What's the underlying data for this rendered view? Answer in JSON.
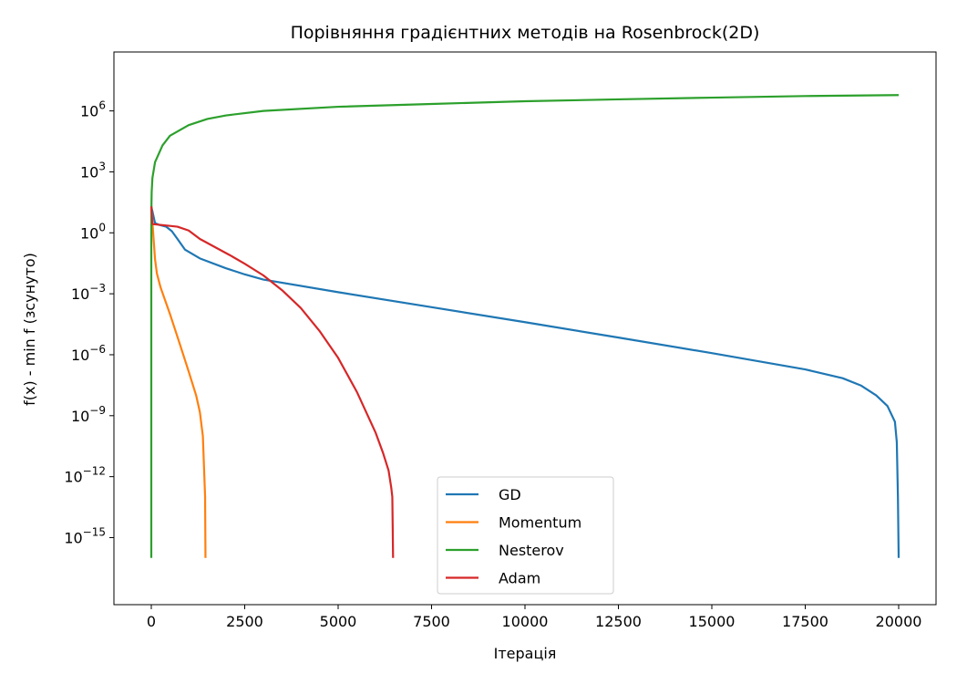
{
  "chart_data": {
    "type": "line",
    "title": "Порівняння градієнтних методів на Rosenbrock(2D)",
    "xlabel": "Ітерація",
    "ylabel": "f(x) - min f (зсунуто)",
    "xscale": "linear",
    "yscale": "log",
    "xlim": [
      -1000,
      21000
    ],
    "ylim_exponent": [
      -18.3,
      8.9
    ],
    "x_ticks": [
      0,
      2500,
      5000,
      7500,
      10000,
      12500,
      15000,
      17500,
      20000
    ],
    "y_ticks": [
      {
        "base": "10",
        "exp": "6",
        "value": 1000000.0
      },
      {
        "base": "10",
        "exp": "3",
        "value": 1000.0
      },
      {
        "base": "10",
        "exp": "0",
        "value": 1
      },
      {
        "base": "10",
        "exp": "−3",
        "value": 0.001
      },
      {
        "base": "10",
        "exp": "−6",
        "value": 1e-06
      },
      {
        "base": "10",
        "exp": "−9",
        "value": 1e-09
      },
      {
        "base": "10",
        "exp": "−12",
        "value": 1e-12
      },
      {
        "base": "10",
        "exp": "−15",
        "value": 1e-15
      }
    ],
    "grid": false,
    "legend_position": "lower-center",
    "series": [
      {
        "name": "GD",
        "color": "#1f77b4",
        "points": [
          [
            0,
            20
          ],
          [
            100,
            3
          ],
          [
            200,
            2.5
          ],
          [
            400,
            2
          ],
          [
            550,
            1.2
          ],
          [
            700,
            0.5
          ],
          [
            900,
            0.15
          ],
          [
            1300,
            0.055
          ],
          [
            2000,
            0.018
          ],
          [
            2500,
            0.009
          ],
          [
            3000,
            0.005
          ],
          [
            5000,
            0.0012
          ],
          [
            7500,
            0.00022
          ],
          [
            10000,
            4e-05
          ],
          [
            12500,
            7e-06
          ],
          [
            15000,
            1.2e-06
          ],
          [
            17500,
            1.9e-07
          ],
          [
            18500,
            7e-08
          ],
          [
            19000,
            3e-08
          ],
          [
            19400,
            1e-08
          ],
          [
            19700,
            3e-09
          ],
          [
            19900,
            5e-10
          ],
          [
            19950,
            5e-11
          ],
          [
            19980,
            1e-13
          ],
          [
            20000,
            1e-16
          ]
        ]
      },
      {
        "name": "Momentum",
        "color": "#ff7f0e",
        "points": [
          [
            0,
            20
          ],
          [
            50,
            1
          ],
          [
            100,
            0.05
          ],
          [
            150,
            0.01
          ],
          [
            250,
            0.002
          ],
          [
            500,
            0.0001
          ],
          [
            750,
            4e-06
          ],
          [
            1000,
            1.5e-07
          ],
          [
            1200,
            1e-08
          ],
          [
            1300,
            1.5e-09
          ],
          [
            1380,
            1e-10
          ],
          [
            1420,
            1e-12
          ],
          [
            1440,
            1e-13
          ],
          [
            1450,
            1e-16
          ]
        ]
      },
      {
        "name": "Nesterov",
        "color": "#2ca02c",
        "points": [
          [
            0,
            1e-16
          ],
          [
            0,
            1
          ],
          [
            5,
            30
          ],
          [
            10,
            100
          ],
          [
            30,
            500
          ],
          [
            100,
            3000
          ],
          [
            300,
            20000
          ],
          [
            500,
            60000
          ],
          [
            1000,
            200000
          ],
          [
            1500,
            400000
          ],
          [
            2000,
            600000
          ],
          [
            3000,
            1000000
          ],
          [
            5000,
            1600000
          ],
          [
            7500,
            2200000
          ],
          [
            10000,
            3000000
          ],
          [
            12500,
            3700000
          ],
          [
            15000,
            4500000
          ],
          [
            17500,
            5400000
          ],
          [
            20000,
            6000000
          ]
        ]
      },
      {
        "name": "Adam",
        "color": "#d62728",
        "points": [
          [
            0,
            20
          ],
          [
            30,
            2.7
          ],
          [
            300,
            2.4
          ],
          [
            700,
            2
          ],
          [
            1000,
            1.3
          ],
          [
            1300,
            0.5
          ],
          [
            1700,
            0.2
          ],
          [
            2100,
            0.08
          ],
          [
            2500,
            0.03
          ],
          [
            3000,
            0.008
          ],
          [
            3500,
            0.0015
          ],
          [
            4000,
            0.0002
          ],
          [
            4500,
            1.5e-05
          ],
          [
            5000,
            7e-07
          ],
          [
            5500,
            1.5e-08
          ],
          [
            6000,
            1.5e-10
          ],
          [
            6200,
            1.5e-11
          ],
          [
            6350,
            2e-12
          ],
          [
            6420,
            3e-13
          ],
          [
            6450,
            1e-13
          ],
          [
            6470,
            1e-16
          ]
        ]
      }
    ]
  }
}
